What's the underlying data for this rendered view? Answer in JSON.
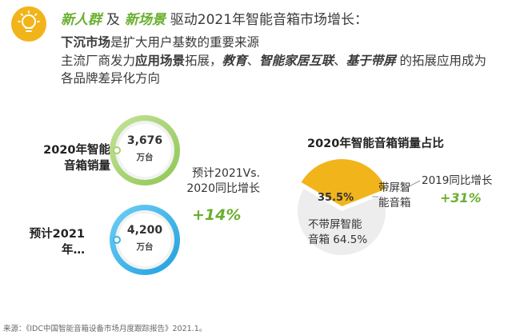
{
  "header": {
    "tag1": "新人群",
    "joiner": "及",
    "tag2": "新场景",
    "rest": "驱动2021年智能音箱市场增长："
  },
  "points": {
    "line1_bold": "下沉市场",
    "line1_rest": "是扩大用户基数的重要来源",
    "line2_a": "主流厂商发力",
    "line2_b": "应用场景",
    "line2_c": "拓展，",
    "line2_d": "教育",
    "line2_e": "、",
    "line2_f": "智能家居互联",
    "line2_g": "、",
    "line2_h": "基于带屏",
    "line2_i": " 的拓展应用成为",
    "line3": "各品牌差异化方向"
  },
  "colors": {
    "accent_green": "#6aaf2f",
    "ring_green": "#a7d36b",
    "ring_blue": "#39b5ea",
    "gold": "#f1b41a",
    "pie_grey": "#ededed"
  },
  "chart_data": [
    {
      "type": "bar",
      "categories_lines": [
        [
          "2020年智能",
          "音箱销量"
        ],
        [
          "预计2021",
          "年…"
        ]
      ],
      "values_text": [
        "3,676",
        "4,200"
      ],
      "values": [
        3676,
        4200
      ],
      "unit": "万台",
      "ring_colors": [
        "#a7d36b",
        "#39b5ea"
      ],
      "growth_label_lines": [
        "预计2021Vs.",
        "2020同比增长"
      ],
      "growth_value": "+14%"
    },
    {
      "type": "pie",
      "title": "2020年智能音箱销量占比",
      "slices": [
        {
          "label_lines": [
            "带屏智",
            "能音箱"
          ],
          "value": 35.5,
          "value_text": "35.5%",
          "color": "#f1b41a"
        },
        {
          "label_lines": [
            "不带屏智能",
            "音箱 64.5%"
          ],
          "value": 64.5,
          "color": "#ededed"
        }
      ],
      "annotation_label": "2019同比增长",
      "annotation_value": "+31%"
    }
  ],
  "source": "来源：《IDC中国智能音箱设备市场月度跟踪报告》2021.1。"
}
